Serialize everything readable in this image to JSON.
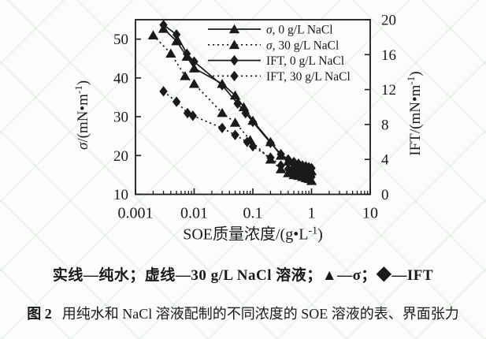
{
  "figure": {
    "number": "图 2",
    "caption": "用纯水和 NaCl 溶液配制的不同浓度的 SOE 溶液的表、界面张力",
    "series_key": "实线—纯水；虚线—30 g/L NaCl 溶液；▲—σ；◆—IFT"
  },
  "chart_data": {
    "type": "line",
    "title": "",
    "x_axis": {
      "label": "SOE质量浓度/(g•L⁻¹)",
      "scale": "log",
      "range": [
        0.001,
        10
      ],
      "tick_values": [
        0.001,
        0.01,
        0.1,
        1,
        10
      ],
      "tick_labels": [
        "0.001",
        "0.01",
        "0.1",
        "1",
        "10"
      ]
    },
    "y_left_axis": {
      "label": "σ/(mN•m⁻¹)",
      "range": [
        10,
        55
      ],
      "ticks": [
        10,
        20,
        30,
        40,
        50
      ]
    },
    "y_right_axis": {
      "label": "IFT/(mN•m⁻¹)",
      "range": [
        0,
        20
      ],
      "ticks": [
        0,
        4,
        8,
        12,
        16,
        20
      ]
    },
    "grid": false,
    "legend_position": "top-right-inside",
    "series": [
      {
        "name": "σ, 0 g/L NaCl",
        "axis": "left",
        "line": "solid",
        "marker": "triangle",
        "x": [
          0.003,
          0.005,
          0.0075,
          0.01,
          0.03,
          0.05,
          0.07,
          0.1,
          0.2,
          0.3,
          0.4,
          0.5,
          0.6,
          0.7,
          0.8,
          0.9,
          1.0
        ],
        "values": [
          52.7,
          49.5,
          45.5,
          42.5,
          38.5,
          35.5,
          32.5,
          29,
          23.5,
          20,
          18.5,
          17.5,
          17,
          16.8,
          16.5,
          16.3,
          16
        ]
      },
      {
        "name": "σ, 30 g/L NaCl",
        "axis": "left",
        "line": "dotted",
        "marker": "triangle",
        "x": [
          0.002,
          0.004,
          0.007,
          0.01,
          0.03,
          0.05,
          0.09,
          0.2,
          0.3,
          0.4,
          0.5,
          0.6,
          0.7,
          0.8,
          0.9,
          1.0
        ],
        "values": [
          51,
          46.3,
          40.5,
          38.5,
          31,
          28.5,
          24,
          19,
          16.5,
          15.5,
          15,
          14.8,
          14.5,
          14.2,
          14,
          13.5
        ]
      },
      {
        "name": "IFT, 0 g/L NaCl",
        "axis": "right",
        "line": "solid",
        "marker": "diamond",
        "x": [
          0.003,
          0.005,
          0.0075,
          0.01,
          0.03,
          0.055,
          0.075,
          0.1,
          0.2,
          0.3,
          0.4,
          0.5,
          0.6,
          0.7,
          0.8,
          0.9,
          1.0
        ],
        "values": [
          19.4,
          18.3,
          16.1,
          15.2,
          12.5,
          10.4,
          9.3,
          8.3,
          5.9,
          4.6,
          4.0,
          3.7,
          3.5,
          3.3,
          3.2,
          3.1,
          3.0
        ]
      },
      {
        "name": "IFT, 30 g/L NaCl",
        "axis": "right",
        "line": "dotted",
        "marker": "diamond",
        "x": [
          0.003,
          0.005,
          0.0077,
          0.0095,
          0.03,
          0.05,
          0.08,
          0.1,
          0.2,
          0.3,
          0.4,
          0.5,
          0.6,
          0.7,
          0.8,
          0.9,
          1.0
        ],
        "values": [
          11.8,
          10.6,
          9.3,
          9.0,
          7.6,
          6.8,
          6.0,
          5.5,
          4.2,
          3.3,
          2.9,
          2.6,
          2.45,
          2.3,
          2.2,
          2.1,
          2.0
        ]
      }
    ],
    "colors": {
      "ink": "#1a1a1a",
      "background": "#fcfcfc",
      "watermark_green": "#cde4cb"
    }
  }
}
